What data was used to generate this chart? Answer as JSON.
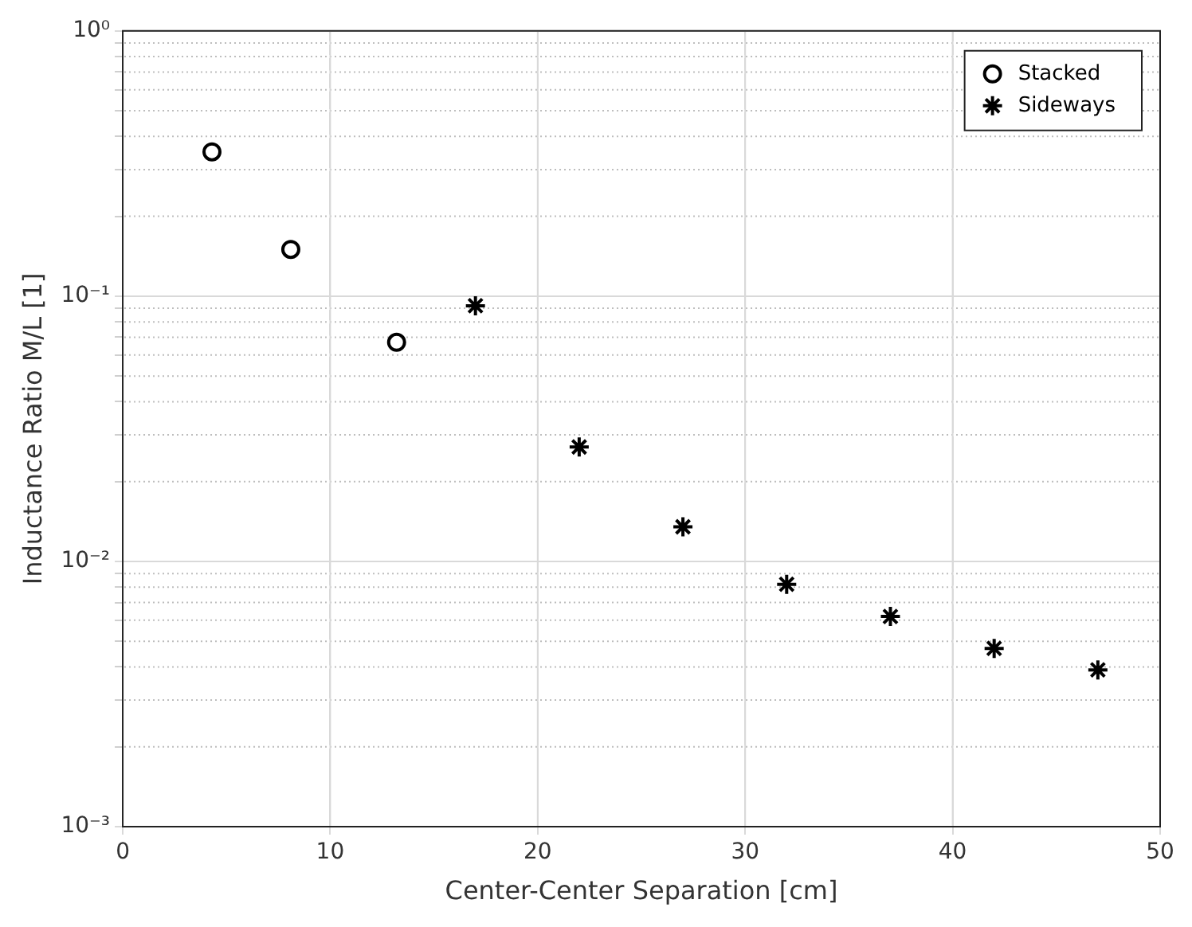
{
  "chart_data": {
    "type": "scatter",
    "xlabel": "Center-Center Separation [cm]",
    "ylabel": "Inductance Ratio M/L [1]",
    "series": [
      {
        "name": "Stacked",
        "color": "#000000",
        "marker": "circle",
        "x": [
          4.3,
          8.1,
          13.2
        ],
        "values": [
          0.35,
          0.15,
          0.067
        ]
      },
      {
        "name": "Sideways",
        "color": "#000000",
        "marker": "cross",
        "x": [
          17,
          22,
          27,
          32,
          37,
          42,
          47
        ],
        "values": [
          0.092,
          0.027,
          0.0135,
          0.0082,
          0.0062,
          0.0047,
          0.0039
        ]
      }
    ],
    "log": "y",
    "grid": true,
    "legend": "top right",
    "xlim": [
      0,
      50
    ],
    "xticks": [
      0,
      10,
      20,
      30,
      40,
      50
    ],
    "ylim": [
      0.001,
      1
    ],
    "yticks": [
      {
        "value": 0.001,
        "label": "10⁻³"
      },
      {
        "value": 0.002,
        "label": null
      },
      {
        "value": 0.003,
        "label": null
      },
      {
        "value": 0.004,
        "label": null
      },
      {
        "value": 0.005,
        "label": null
      },
      {
        "value": 0.006,
        "label": null
      },
      {
        "value": 0.007,
        "label": null
      },
      {
        "value": 0.008,
        "label": null
      },
      {
        "value": 0.009,
        "label": null
      },
      {
        "value": 0.01,
        "label": "10⁻²"
      },
      {
        "value": 0.02,
        "label": null
      },
      {
        "value": 0.03,
        "label": null
      },
      {
        "value": 0.04,
        "label": null
      },
      {
        "value": 0.05,
        "label": null
      },
      {
        "value": 0.06,
        "label": null
      },
      {
        "value": 0.07,
        "label": null
      },
      {
        "value": 0.08,
        "label": null
      },
      {
        "value": 0.09,
        "label": null
      },
      {
        "value": 0.1,
        "label": "10⁻¹"
      },
      {
        "value": 0.2,
        "label": null
      },
      {
        "value": 0.3,
        "label": null
      },
      {
        "value": 0.4,
        "label": null
      },
      {
        "value": 0.5,
        "label": null
      },
      {
        "value": 0.6,
        "label": null
      },
      {
        "value": 0.7,
        "label": null
      },
      {
        "value": 0.8,
        "label": null
      },
      {
        "value": 0.9,
        "label": null
      },
      {
        "value": 1,
        "label": "10⁰"
      }
    ]
  }
}
